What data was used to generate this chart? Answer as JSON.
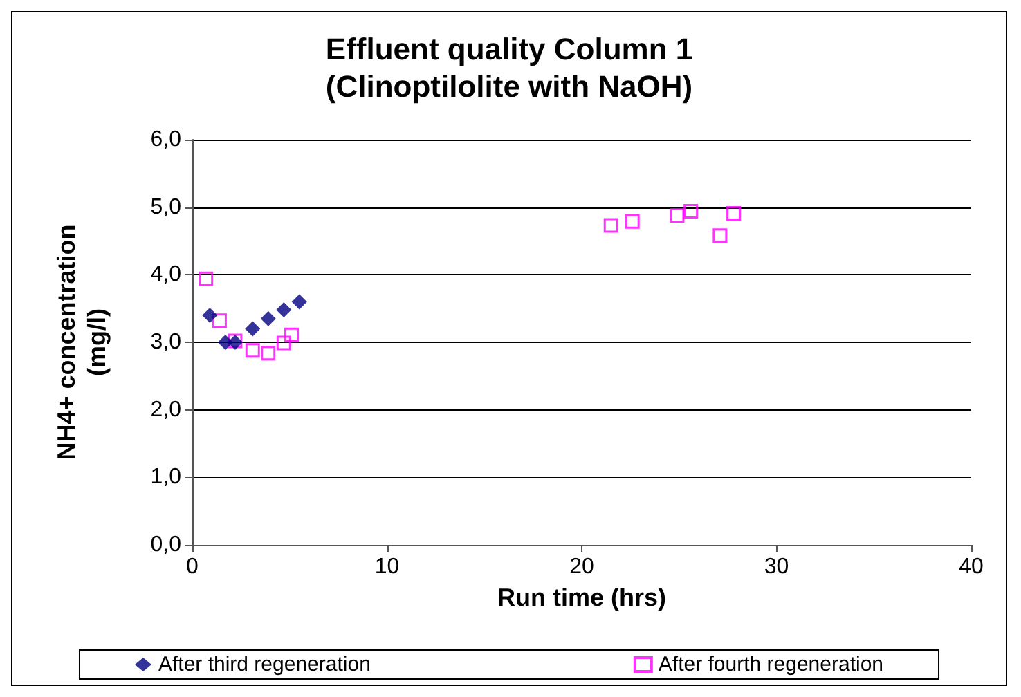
{
  "chart_data": {
    "type": "scatter",
    "title": "Effluent quality Column 1\n(Clinoptilolite with NaOH)",
    "xlabel": "Run time (hrs)",
    "ylabel": "NH4+ concentration\n(mg/l)",
    "xlim": [
      0,
      40
    ],
    "xticks": [
      0,
      10,
      20,
      30,
      40
    ],
    "ylim": [
      0,
      6
    ],
    "yticks": [
      {
        "value": 0,
        "label": "0,0"
      },
      {
        "value": 1,
        "label": "1,0"
      },
      {
        "value": 2,
        "label": "2,0"
      },
      {
        "value": 3,
        "label": "3,0"
      },
      {
        "value": 4,
        "label": "4,0"
      },
      {
        "value": 5,
        "label": "5,0"
      },
      {
        "value": 6,
        "label": "6,0"
      }
    ],
    "grid": "y",
    "legend": "bottom",
    "series": [
      {
        "name": "After third regeneration",
        "color": "#000080",
        "marker": "diamond",
        "x": [
          0.9,
          1.7,
          2.2,
          3.1,
          3.9,
          4.7,
          5.5
        ],
        "values": [
          3.4,
          3.0,
          3.0,
          3.2,
          3.35,
          3.48,
          3.6
        ]
      },
      {
        "name": "After fourth regeneration",
        "color": "#ff00ff",
        "marker": "square",
        "x": [
          0.7,
          1.4,
          2.2,
          3.1,
          3.9,
          4.7,
          5.1,
          21.5,
          22.6,
          24.9,
          25.6,
          27.1,
          27.8
        ],
        "values": [
          3.94,
          3.32,
          3.02,
          2.88,
          2.84,
          2.99,
          3.11,
          4.73,
          4.79,
          4.88,
          4.94,
          4.58,
          4.91
        ]
      }
    ]
  }
}
